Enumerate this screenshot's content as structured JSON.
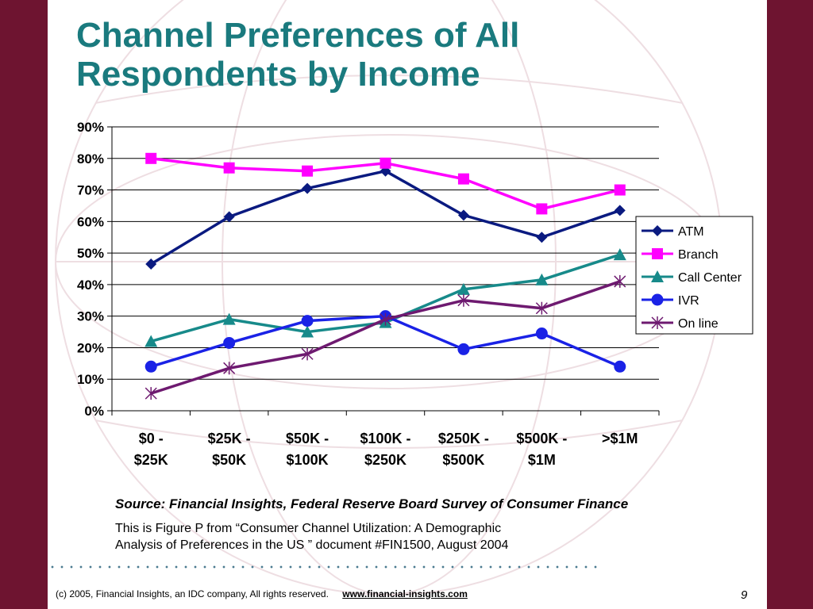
{
  "slide": {
    "title_lines": [
      "Channel Preferences of All",
      "Respondents by Income"
    ],
    "source": "Source: Financial Insights, Federal Reserve Board Survey of Consumer Finance",
    "note_lines": [
      "This is Figure P from “Consumer Channel Utilization: A Demographic",
      "Analysis of Preferences in the US ” document #FIN1500, August 2004"
    ],
    "footer_text": "(c) 2005, Financial Insights, an IDC company, All rights reserved.",
    "footer_link": "www.financial-insights.com",
    "page_number": "9"
  },
  "colors": {
    "background": "#6e1430",
    "title": "#1a7a7e"
  },
  "chart_data": {
    "type": "line",
    "title": "",
    "xlabel": "",
    "ylabel": "",
    "categories": [
      [
        "$0 -",
        "$25K"
      ],
      [
        "$25K -",
        "$50K"
      ],
      [
        "$50K -",
        "$100K"
      ],
      [
        "$100K -",
        "$250K"
      ],
      [
        "$250K -",
        "$500K"
      ],
      [
        "$500K -",
        "$1M"
      ],
      [
        ">$1M"
      ]
    ],
    "ylim": [
      0,
      90
    ],
    "yticks": [
      0,
      10,
      20,
      30,
      40,
      50,
      60,
      70,
      80,
      90
    ],
    "ytick_labels": [
      "0%",
      "10%",
      "20%",
      "30%",
      "40%",
      "50%",
      "60%",
      "70%",
      "80%",
      "90%"
    ],
    "grid": true,
    "legend_position": "right",
    "series": [
      {
        "name": "ATM",
        "color": "#0a1a80",
        "marker": "diamond",
        "values": [
          46.5,
          61.5,
          70.5,
          76,
          62,
          55,
          63.5
        ]
      },
      {
        "name": "Branch",
        "color": "#ff00ff",
        "marker": "square",
        "values": [
          80,
          77,
          76,
          78.5,
          73.5,
          64,
          70
        ]
      },
      {
        "name": "Call Center",
        "color": "#178a8a",
        "marker": "triangle",
        "values": [
          22,
          29,
          25,
          28,
          38.5,
          41.5,
          49.5
        ]
      },
      {
        "name": "IVR",
        "color": "#1a22e6",
        "marker": "circle",
        "values": [
          14,
          21.5,
          28.5,
          30,
          19.5,
          24.5,
          14
        ]
      },
      {
        "name": "On line",
        "color": "#6e1a70",
        "marker": "star",
        "values": [
          5.5,
          13.5,
          18,
          29,
          35,
          32.5,
          41
        ]
      }
    ]
  }
}
